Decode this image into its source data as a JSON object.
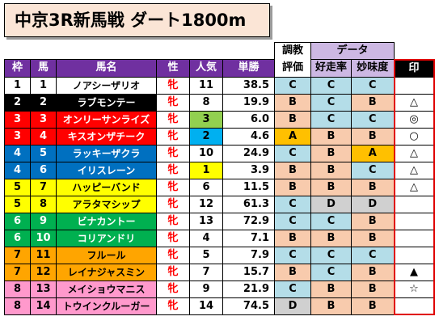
{
  "title": "中京3R新馬戦 ダート1800m",
  "header": {
    "group_chokyo_top": "調教",
    "group_chokyo_bottom": "評価",
    "group_data": "データ",
    "waku": "枠",
    "uma": "馬",
    "bamei": "馬名",
    "sei": "性",
    "ninki": "人気",
    "tansho": "単勝",
    "kosouritsu": "好走率",
    "myoumido": "妙味度",
    "shirushi": "印"
  },
  "colors": {
    "header_purple": "#7030a0",
    "header_light_purple": "#cdb8e3",
    "title_bg": "#fbe5d6",
    "mark_border": "#e00000",
    "grade_A": "#ffc000",
    "grade_B": "#f8cbad",
    "grade_C": "#b4dde8",
    "grade_D": "#d0d0d0"
  },
  "rows": [
    {
      "waku": "1",
      "uma": "1",
      "name": "ノアシーザリオ",
      "sex": "牝",
      "pop": "11",
      "odds": "38.5",
      "chokyo": "C",
      "kosou": "C",
      "myomi": "C",
      "mark": ""
    },
    {
      "waku": "2",
      "uma": "2",
      "name": "ラブモンテー",
      "sex": "牝",
      "pop": "8",
      "odds": "19.9",
      "chokyo": "B",
      "kosou": "C",
      "myomi": "B",
      "mark": "△"
    },
    {
      "waku": "3",
      "uma": "3",
      "name": "オンリーサンライズ",
      "sex": "牝",
      "pop": "3",
      "odds": "6.0",
      "chokyo": "B",
      "kosou": "C",
      "myomi": "C",
      "mark": "◎"
    },
    {
      "waku": "3",
      "uma": "4",
      "name": "キスオンザチーク",
      "sex": "牝",
      "pop": "2",
      "odds": "4.6",
      "chokyo": "A",
      "kosou": "B",
      "myomi": "B",
      "mark": "○"
    },
    {
      "waku": "4",
      "uma": "5",
      "name": "ラッキーザクラ",
      "sex": "牝",
      "pop": "10",
      "odds": "24.9",
      "chokyo": "C",
      "kosou": "B",
      "myomi": "A",
      "mark": "△"
    },
    {
      "waku": "4",
      "uma": "6",
      "name": "イリスレーン",
      "sex": "牝",
      "pop": "1",
      "odds": "3.9",
      "chokyo": "B",
      "kosou": "B",
      "myomi": "C",
      "mark": "△"
    },
    {
      "waku": "5",
      "uma": "7",
      "name": "ハッピーバンド",
      "sex": "牝",
      "pop": "6",
      "odds": "11.5",
      "chokyo": "B",
      "kosou": "B",
      "myomi": "B",
      "mark": "△"
    },
    {
      "waku": "5",
      "uma": "8",
      "name": "アラタマシップ",
      "sex": "牝",
      "pop": "12",
      "odds": "61.3",
      "chokyo": "C",
      "kosou": "D",
      "myomi": "D",
      "mark": ""
    },
    {
      "waku": "6",
      "uma": "9",
      "name": "ビナカントー",
      "sex": "牝",
      "pop": "13",
      "odds": "72.9",
      "chokyo": "C",
      "kosou": "C",
      "myomi": "B",
      "mark": ""
    },
    {
      "waku": "6",
      "uma": "10",
      "name": "コリアンドリ",
      "sex": "牝",
      "pop": "4",
      "odds": "7.1",
      "chokyo": "B",
      "kosou": "B",
      "myomi": "B",
      "mark": ""
    },
    {
      "waku": "7",
      "uma": "11",
      "name": "フルール",
      "sex": "牝",
      "pop": "5",
      "odds": "7.9",
      "chokyo": "C",
      "kosou": "C",
      "myomi": "C",
      "mark": ""
    },
    {
      "waku": "7",
      "uma": "12",
      "name": "レイナジャスミン",
      "sex": "牝",
      "pop": "7",
      "odds": "15.7",
      "chokyo": "B",
      "kosou": "C",
      "myomi": "B",
      "mark": "▲"
    },
    {
      "waku": "8",
      "uma": "13",
      "name": "メイショウマニス",
      "sex": "牝",
      "pop": "9",
      "odds": "21.9",
      "chokyo": "C",
      "kosou": "B",
      "myomi": "B",
      "mark": "☆"
    },
    {
      "waku": "8",
      "uma": "14",
      "name": "トウインクルーガー",
      "sex": "牝",
      "pop": "14",
      "odds": "74.5",
      "chokyo": "D",
      "kosou": "B",
      "myomi": "B",
      "mark": ""
    }
  ]
}
